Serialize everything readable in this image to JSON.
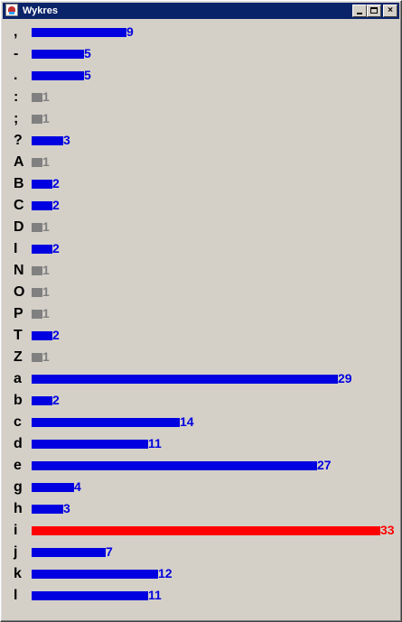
{
  "window": {
    "title": "Wykres",
    "minimize_glyph": "",
    "maximize_glyph": "",
    "close_glyph": "×"
  },
  "colors": {
    "normal": "#0000e0",
    "low": "#808080",
    "max": "#ff0000"
  },
  "chart_data": {
    "type": "bar",
    "orientation": "horizontal",
    "categories": [
      ",",
      "-",
      ".",
      ":",
      ";",
      "?",
      "A",
      "B",
      "C",
      "D",
      "I",
      "N",
      "O",
      "P",
      "T",
      "Z",
      "a",
      "b",
      "c",
      "d",
      "e",
      "g",
      "h",
      "i",
      "j",
      "k",
      "l"
    ],
    "values": [
      9,
      5,
      5,
      1,
      1,
      3,
      1,
      2,
      2,
      1,
      2,
      1,
      1,
      1,
      2,
      1,
      29,
      2,
      14,
      11,
      27,
      4,
      3,
      33,
      7,
      12,
      11
    ],
    "xlim": [
      0,
      33
    ]
  }
}
